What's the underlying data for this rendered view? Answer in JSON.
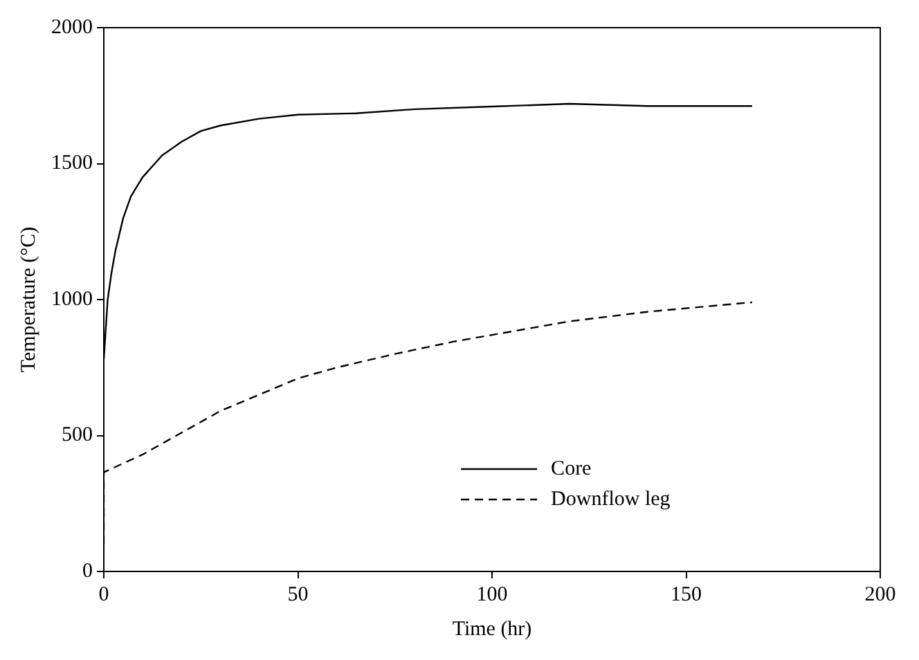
{
  "chart_data": {
    "type": "line",
    "xlabel": "Time (hr)",
    "ylabel": "Temperature (°C)",
    "xlim": [
      0,
      200
    ],
    "xticks": [
      0,
      50,
      100,
      150,
      200
    ],
    "ylim": [
      0,
      2000
    ],
    "yticks": [
      0,
      500,
      1000,
      1500,
      2000
    ],
    "grid": false,
    "legend": "bottom right",
    "marker": "none",
    "series": [
      {
        "name": "Core",
        "color": "#000000",
        "line_style": "solid",
        "x": [
          0,
          1,
          2,
          3,
          5,
          7,
          10,
          15,
          20,
          25,
          30,
          40,
          50,
          65,
          80,
          100,
          120,
          140,
          167
        ],
        "values": [
          780,
          1000,
          1100,
          1180,
          1300,
          1380,
          1450,
          1530,
          1580,
          1620,
          1640,
          1665,
          1680,
          1685,
          1700,
          1710,
          1720,
          1712,
          1712
        ]
      },
      {
        "name": "Downflow leg",
        "color": "#000000",
        "line_style": "dashed",
        "x": [
          0,
          0,
          10,
          20,
          30,
          40,
          50,
          60,
          75,
          90,
          100,
          120,
          140,
          167
        ],
        "values": [
          100,
          365,
          430,
          510,
          590,
          650,
          710,
          750,
          800,
          845,
          870,
          920,
          955,
          990
        ]
      }
    ]
  }
}
